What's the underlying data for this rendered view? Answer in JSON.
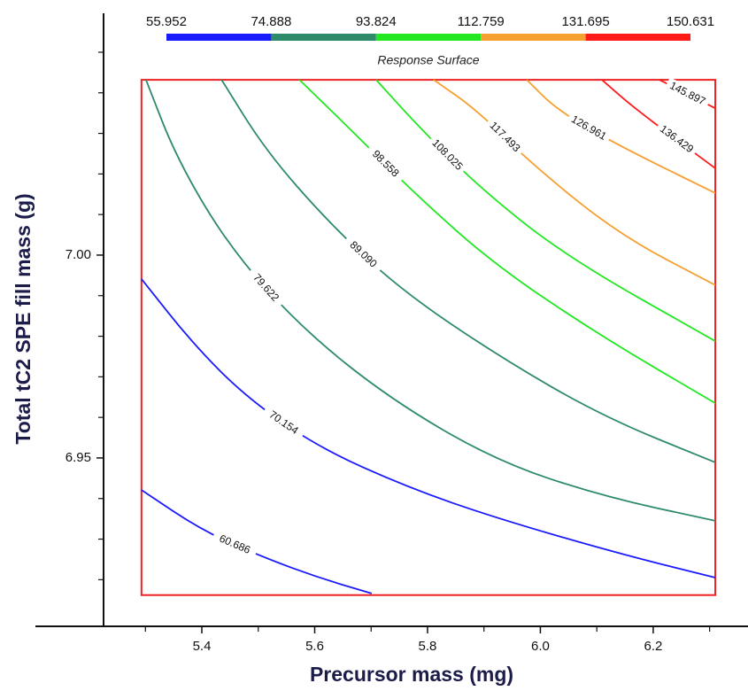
{
  "chart_data": {
    "type": "contour",
    "subtitle": "Response Surface",
    "xlabel": "Precursor mass (mg)",
    "ylabel": "Total tC2 SPE fill mass (g)",
    "xlim": [
      5.105,
      6.368
    ],
    "ylim": [
      6.9085,
      7.0596
    ],
    "xticks": [
      5.4,
      5.6,
      5.8,
      {
        "value": 6,
        "label": "6.0"
      },
      6.2
    ],
    "xminorticks": [
      5.3,
      5.5,
      5.7,
      5.9,
      6.1,
      6.3
    ],
    "yticks": [
      {
        "value": 6.95,
        "label": "6.95"
      },
      {
        "value": 7,
        "label": "7.00"
      }
    ],
    "yminorticks": [
      6.92,
      6.93,
      6.94,
      6.96,
      6.97,
      6.98,
      6.99,
      7.01,
      7.02,
      7.03,
      7.04,
      7.05
    ],
    "domain_x": [
      5.293,
      6.31
    ],
    "domain_y": [
      6.9162,
      7.0432
    ],
    "domain_color": "#ee2222",
    "colorbar": {
      "ticks": [
        55.952,
        74.888,
        93.824,
        112.759,
        131.695,
        150.631
      ],
      "colors": [
        "#1a1aff",
        "#2e8b6a",
        "#22e822",
        "#f5a030",
        "#ff1a1a"
      ]
    },
    "series": [
      {
        "name": "60.686",
        "level": 60.686,
        "color": "#1a1aff",
        "x": [
          5.293,
          5.403,
          5.513,
          5.607,
          5.701
        ],
        "values": [
          6.9421,
          6.9319,
          6.9253,
          6.9205,
          6.9166
        ]
      },
      {
        "name": "70.154",
        "level": 70.154,
        "color": "#1a1aff",
        "x": [
          5.293,
          5.387,
          5.482,
          5.607,
          5.764,
          5.921,
          6.14,
          6.31
        ],
        "values": [
          6.9941,
          6.9777,
          6.9646,
          6.9526,
          6.9428,
          6.9352,
          6.9264,
          6.9205
        ]
      },
      {
        "name": "79.622",
        "level": 79.622,
        "color": "#2e8b6a",
        "x": [
          5.301,
          5.356,
          5.45,
          5.576,
          5.733,
          5.921,
          6.109,
          6.31
        ],
        "values": [
          7.0432,
          7.0236,
          7.0017,
          6.9821,
          6.9646,
          6.9493,
          6.9406,
          6.9345
        ]
      },
      {
        "name": "89.090",
        "level": 89.09,
        "color": "#2e8b6a",
        "x": [
          5.435,
          5.513,
          5.623,
          5.748,
          5.921,
          6.109,
          6.31
        ],
        "values": [
          7.0432,
          7.0258,
          7.0083,
          6.9919,
          6.9755,
          6.9603,
          6.9489
        ]
      },
      {
        "name": "98.558",
        "level": 98.558,
        "color": "#22e822",
        "x": [
          5.573,
          5.67,
          5.78,
          5.921,
          6.109,
          6.31
        ],
        "values": [
          7.0432,
          7.0301,
          7.0148,
          6.9974,
          6.9799,
          6.9635
        ]
      },
      {
        "name": "108.025",
        "level": 108.025,
        "color": "#22e822",
        "x": [
          5.709,
          5.78,
          5.889,
          6.046,
          6.31
        ],
        "values": [
          7.0432,
          7.0323,
          7.017,
          6.9996,
          6.9788
        ]
      },
      {
        "name": "117.493",
        "level": 117.493,
        "color": "#f5a030",
        "x": [
          5.811,
          5.889,
          5.984,
          6.14,
          6.31
        ],
        "values": [
          7.0432,
          7.0356,
          7.0225,
          7.005,
          6.9926
        ]
      },
      {
        "name": "126.961",
        "level": 126.961,
        "color": "#f5a030",
        "x": [
          5.976,
          6.031,
          6.14,
          6.31
        ],
        "values": [
          7.0432,
          7.0356,
          7.0269,
          7.0153
        ]
      },
      {
        "name": "136.429",
        "level": 136.429,
        "color": "#ff1a1a",
        "x": [
          6.109,
          6.172,
          6.31
        ],
        "values": [
          7.0432,
          7.0356,
          7.0214
        ]
      },
      {
        "name": "145.897",
        "level": 145.897,
        "color": "#ff1a1a",
        "x": [
          6.211,
          6.31
        ],
        "values": [
          7.0432,
          7.0362
        ]
      }
    ]
  }
}
